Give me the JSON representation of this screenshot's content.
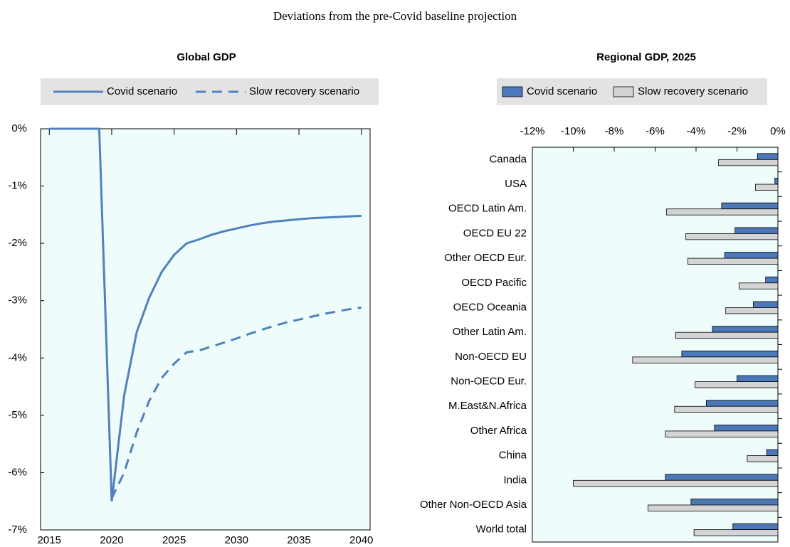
{
  "title": "Deviations from the pre-Covid baseline projection",
  "chart_data": [
    {
      "type": "line",
      "title": "Global GDP",
      "x": [
        2015,
        2016,
        2017,
        2018,
        2019,
        2020,
        2021,
        2022,
        2023,
        2024,
        2025,
        2026,
        2027,
        2028,
        2029,
        2030,
        2031,
        2032,
        2033,
        2034,
        2035,
        2036,
        2037,
        2038,
        2039,
        2040
      ],
      "series": [
        {
          "name": "Covid scenario",
          "color": "#4f81bd",
          "dash": false,
          "values": [
            0,
            0,
            0,
            0,
            0,
            -6.5,
            -4.65,
            -3.55,
            -2.95,
            -2.5,
            -2.2,
            -2.0,
            -1.93,
            -1.85,
            -1.79,
            -1.74,
            -1.69,
            -1.65,
            -1.62,
            -1.6,
            -1.58,
            -1.56,
            -1.55,
            -1.54,
            -1.53,
            -1.52
          ]
        },
        {
          "name": "Slow recovery scenario",
          "color": "#4f81bd",
          "dash": true,
          "values": [
            null,
            null,
            null,
            null,
            null,
            -6.45,
            -6.0,
            -5.3,
            -4.75,
            -4.35,
            -4.1,
            -3.9,
            -3.87,
            -3.8,
            -3.73,
            -3.66,
            -3.58,
            -3.51,
            -3.44,
            -3.38,
            -3.33,
            -3.28,
            -3.23,
            -3.19,
            -3.15,
            -3.12
          ]
        }
      ],
      "xlim": [
        2014.3,
        2040.7
      ],
      "xticks": [
        2015,
        2020,
        2025,
        2030,
        2035,
        2040
      ],
      "ylim": [
        -7,
        0
      ],
      "yticks": [
        {
          "value": -7,
          "label": "-7%"
        },
        {
          "value": -6,
          "label": "-6%"
        },
        {
          "value": -5,
          "label": "-5%"
        },
        {
          "value": -4,
          "label": "-4%"
        },
        {
          "value": -3,
          "label": "-3%"
        },
        {
          "value": -2,
          "label": "-2%"
        },
        {
          "value": -1,
          "label": "-1%"
        },
        {
          "value": 0,
          "label": "0%"
        }
      ]
    },
    {
      "type": "hbar",
      "title": "Regional GDP, 2025",
      "categories": [
        "Canada",
        "USA",
        "OECD Latin Am.",
        "OECD EU 22",
        "Other OECD Eur.",
        "OECD Pacific",
        "OECD Oceania",
        "Other Latin Am.",
        "Non-OECD EU",
        "Non-OECD Eur.",
        "M.East&N.Africa",
        "Other Africa",
        "China",
        "India",
        "Other Non-OECD Asia",
        "World total"
      ],
      "series": [
        {
          "name": "Covid scenario",
          "color": "#4a78b8",
          "values": [
            -1.0,
            -0.15,
            -2.75,
            -2.1,
            -2.6,
            -0.6,
            -1.2,
            -3.2,
            -4.7,
            -2.0,
            -3.5,
            -3.1,
            -0.55,
            -5.5,
            -4.25,
            -2.2
          ]
        },
        {
          "name": "Slow recovery scenario",
          "color": "#d4d4d4",
          "values": [
            -2.9,
            -1.1,
            -5.45,
            -4.5,
            -4.4,
            -1.9,
            -2.55,
            -5.0,
            -7.1,
            -4.05,
            -5.05,
            -5.5,
            -1.5,
            -10.0,
            -6.35,
            -4.1
          ]
        }
      ],
      "xlim": [
        -12,
        0
      ],
      "xticks": [
        {
          "value": -12,
          "label": "-12%"
        },
        {
          "value": -10,
          "label": "-10%"
        },
        {
          "value": -8,
          "label": "-8%"
        },
        {
          "value": -6,
          "label": "-6%"
        },
        {
          "value": -4,
          "label": "-4%"
        },
        {
          "value": -2,
          "label": "-2%"
        },
        {
          "value": 0,
          "label": "0%"
        }
      ]
    }
  ]
}
